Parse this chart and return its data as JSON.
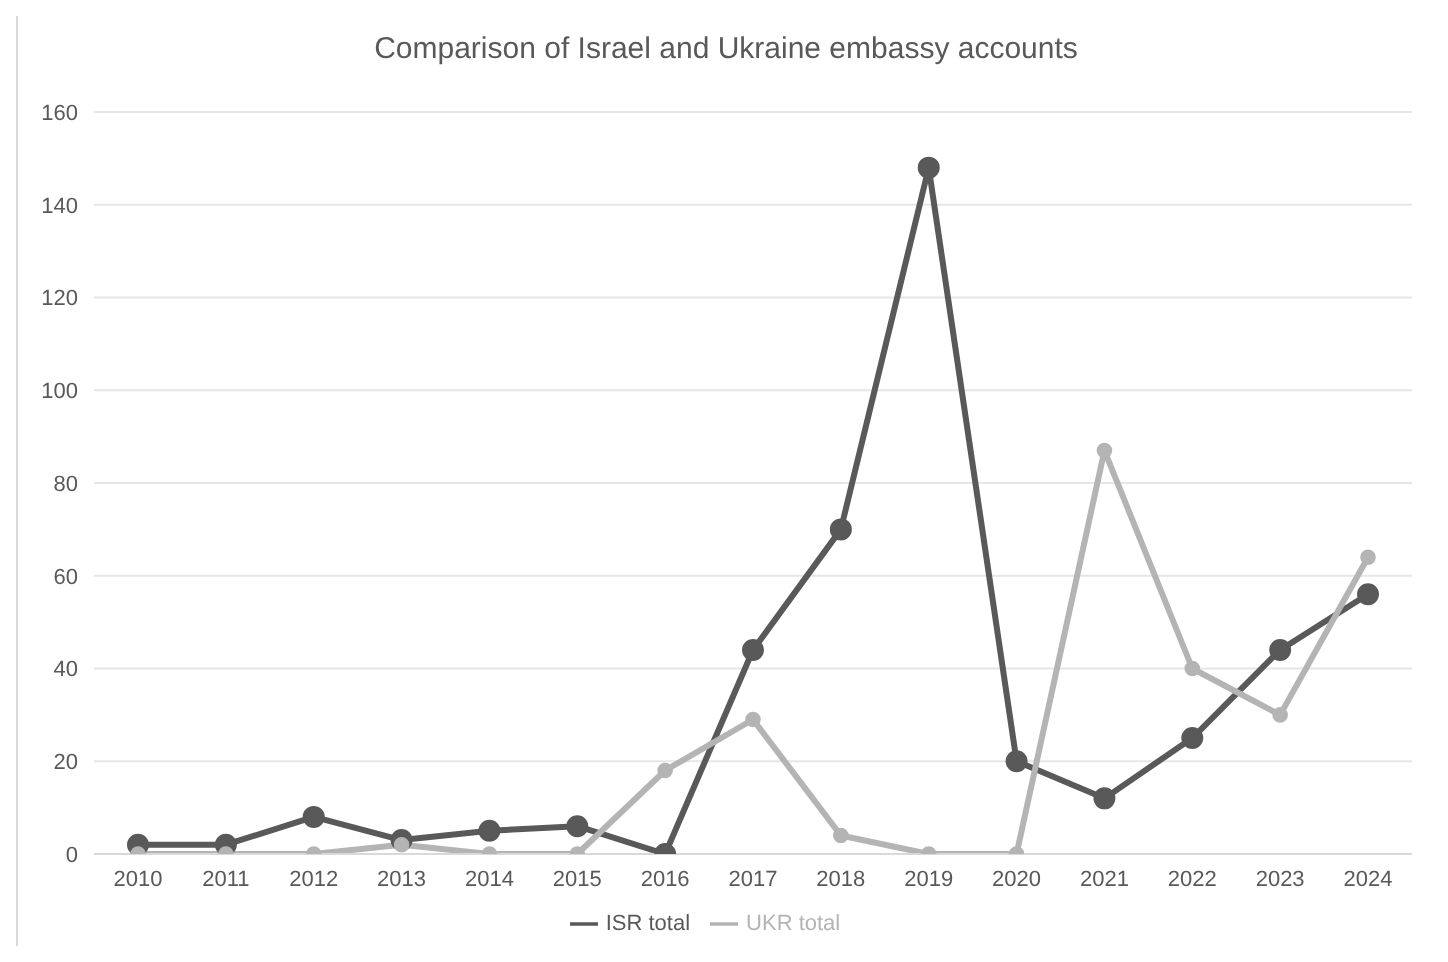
{
  "chart_data": {
    "type": "line",
    "title": "Comparison of Israel and Ukraine embassy accounts",
    "categories": [
      "2010",
      "2011",
      "2012",
      "2013",
      "2014",
      "2015",
      "2016",
      "2017",
      "2018",
      "2019",
      "2020",
      "2021",
      "2022",
      "2023",
      "2024"
    ],
    "series": [
      {
        "name": "ISR total",
        "color": "#595959",
        "values": [
          2,
          2,
          8,
          3,
          5,
          6,
          0,
          44,
          70,
          148,
          20,
          12,
          25,
          44,
          56
        ]
      },
      {
        "name": "UKR total",
        "color": "#b4b4b4",
        "values": [
          0,
          0,
          0,
          2,
          0,
          0,
          18,
          29,
          4,
          0,
          0,
          87,
          40,
          30,
          64
        ]
      }
    ],
    "ylim": [
      0,
      160
    ],
    "yticks": [
      0,
      20,
      40,
      60,
      80,
      100,
      120,
      140,
      160
    ],
    "grid": "y",
    "legend": "bottom",
    "marker": "circle",
    "line_style": "solid"
  }
}
